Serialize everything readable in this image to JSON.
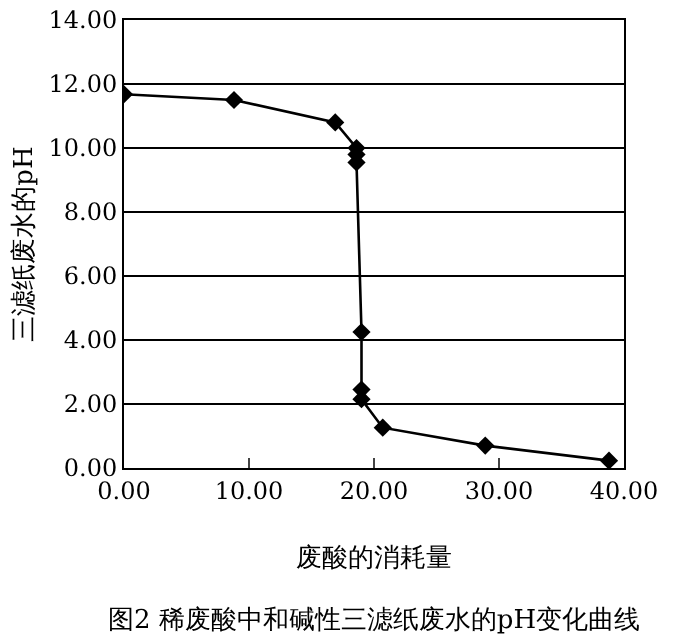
{
  "chart_data": {
    "type": "line",
    "xlabel": "废酸的消耗量",
    "ylabel": "三滤纸废水的pH",
    "annotations": [
      "图2 稀废酸中和碱性三滤纸废水的pH变化曲线"
    ],
    "x": [
      0,
      8.8,
      16.9,
      18.6,
      18.6,
      18.6,
      19.0,
      19.0,
      19.0,
      20.7,
      28.9,
      38.8
    ],
    "series": [
      {
        "color": "#000000",
        "values": [
          11.68,
          11.5,
          10.8,
          10.0,
          9.8,
          9.55,
          4.25,
          2.45,
          2.15,
          1.26,
          0.7,
          0.23
        ]
      }
    ],
    "xlim": [
      0,
      40
    ],
    "xticks": [
      {
        "value": 0,
        "label": "0.00"
      },
      {
        "value": 10,
        "label": "10.00"
      },
      {
        "value": 20,
        "label": "20.00"
      },
      {
        "value": 30,
        "label": "30.00"
      },
      {
        "value": 40,
        "label": "40.00"
      }
    ],
    "ylim": [
      0,
      14
    ],
    "yticks": [
      {
        "value": 0,
        "label": "0.00"
      },
      {
        "value": 2,
        "label": "2.00"
      },
      {
        "value": 4,
        "label": "4.00"
      },
      {
        "value": 6,
        "label": "6.00"
      },
      {
        "value": 8,
        "label": "8.00"
      },
      {
        "value": 10,
        "label": "10.00"
      },
      {
        "value": 12,
        "label": "12.00"
      },
      {
        "value": 14,
        "label": "14.00"
      }
    ],
    "grid": "y",
    "marker": "diamond",
    "line_style": "solid",
    "legend": false
  }
}
